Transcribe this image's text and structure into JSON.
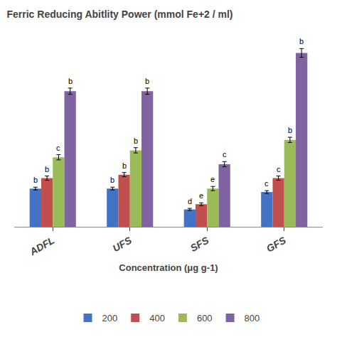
{
  "chart_data": {
    "type": "bar",
    "title": "Ferric Reducing Abitlity Power (mmol Fe+2 / ml)",
    "xlabel": "Concentration (μg g-1)",
    "categories": [
      "ADFL",
      "UFS",
      "SFS",
      "GFS"
    ],
    "series": [
      {
        "name": "200",
        "color": "#4472c4",
        "values": [
          0.22,
          0.22,
          0.1,
          0.2
        ],
        "errors": [
          0.008,
          0.008,
          0.006,
          0.008
        ],
        "annotations": [
          "b",
          "b",
          "d",
          "c"
        ]
      },
      {
        "name": "400",
        "color": "#c0504d",
        "values": [
          0.28,
          0.3,
          0.13,
          0.28
        ],
        "errors": [
          0.012,
          0.012,
          0.008,
          0.012
        ],
        "annotations": [
          "b",
          "b",
          "e",
          "c"
        ]
      },
      {
        "name": "600",
        "color": "#9bbb59",
        "values": [
          0.4,
          0.44,
          0.22,
          0.5
        ],
        "errors": [
          0.015,
          0.015,
          0.012,
          0.015
        ],
        "annotations": [
          "c",
          "b",
          "e",
          "b"
        ]
      },
      {
        "name": "800",
        "color": "#8064a2",
        "values": [
          0.78,
          0.78,
          0.36,
          1.0
        ],
        "errors": [
          0.018,
          0.018,
          0.015,
          0.025
        ],
        "annotations": [
          "b",
          "b",
          "c",
          "b"
        ]
      }
    ],
    "ylim": [
      0,
      1.1
    ],
    "yticks": [],
    "tick_labels": "x",
    "grid": false,
    "legend": "bottom"
  }
}
